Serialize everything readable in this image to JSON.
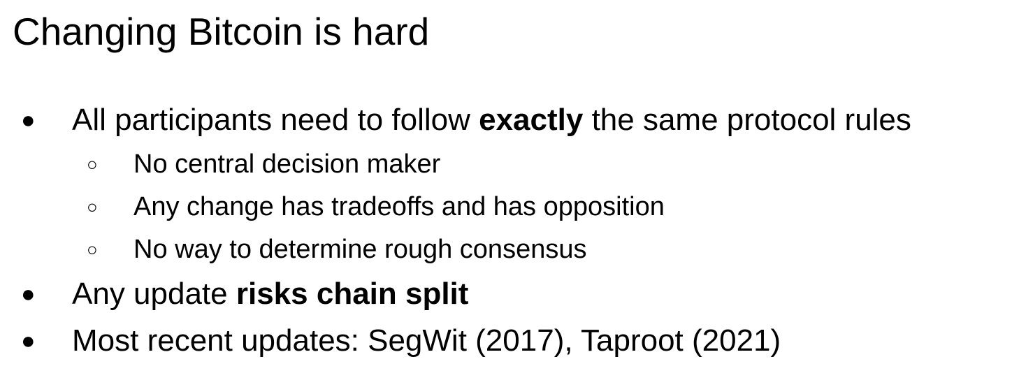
{
  "slide": {
    "title": "Changing Bitcoin is hard",
    "bullet_glyph": "●",
    "sub_bullet_glyph": "○",
    "items": [
      {
        "parts": [
          {
            "text": "All participants need to follow ",
            "bold": false
          },
          {
            "text": "exactly",
            "bold": true
          },
          {
            "text": " the same protocol rules",
            "bold": false
          }
        ],
        "sub_items": [
          "No central decision maker",
          "Any change has tradeoffs and has opposition",
          "No way to determine rough consensus"
        ]
      },
      {
        "parts": [
          {
            "text": "Any update ",
            "bold": false
          },
          {
            "text": "risks chain split",
            "bold": true
          }
        ]
      },
      {
        "parts": [
          {
            "text": "Most recent updates: SegWit (2017), Taproot (2021)",
            "bold": false
          }
        ]
      }
    ]
  }
}
